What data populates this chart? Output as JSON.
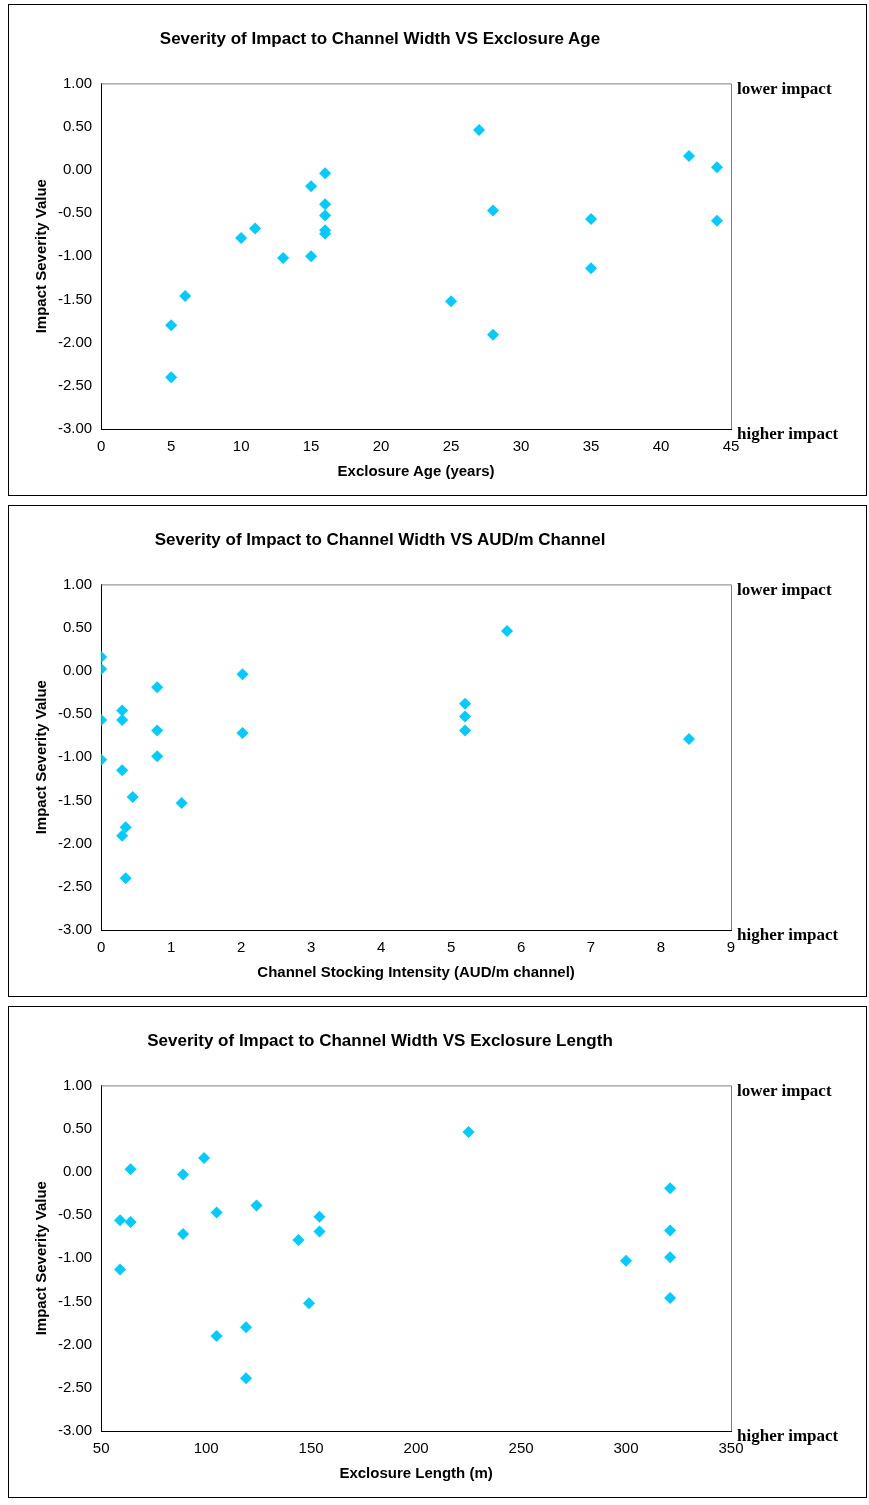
{
  "chart_data": [
    {
      "type": "scatter",
      "title": "Severity of Impact to Channel Width VS Exclosure Age",
      "xlabel": "Exclosure Age (years)",
      "ylabel": "Impact Severity Value",
      "marker": "diamond",
      "grid": false,
      "legend": false,
      "series": [
        {
          "color": "#00ccff",
          "x": [
            5,
            5,
            6,
            10,
            11,
            13,
            15,
            15,
            16,
            16,
            16,
            16,
            16,
            25,
            27,
            28,
            28,
            35,
            35,
            42,
            44,
            44
          ],
          "values": [
            -1.8,
            -2.4,
            -1.46,
            -0.79,
            -0.68,
            -1.02,
            -0.19,
            -1.0,
            -0.04,
            -0.4,
            -0.53,
            -0.7,
            -0.74,
            -1.52,
            0.46,
            -0.47,
            -1.91,
            -0.57,
            -1.14,
            0.16,
            0.03,
            -0.59
          ]
        }
      ],
      "xlim": [
        0,
        45
      ],
      "xticks": [
        0,
        5,
        10,
        15,
        20,
        25,
        30,
        35,
        40,
        45
      ],
      "ylim": [
        -3,
        1
      ],
      "yticks": [
        {
          "value": 1,
          "label": "1.00"
        },
        {
          "value": 0.5,
          "label": "0.50"
        },
        {
          "value": 0,
          "label": "0.00"
        },
        {
          "value": -0.5,
          "label": "-0.50"
        },
        {
          "value": -1,
          "label": "-1.00"
        },
        {
          "value": -1.5,
          "label": "-1.50"
        },
        {
          "value": -2,
          "label": "-2.00"
        },
        {
          "value": -2.5,
          "label": "-2.50"
        },
        {
          "value": -3,
          "label": "-3.00"
        }
      ],
      "annotations": [
        "lower impact",
        "higher impact"
      ]
    },
    {
      "type": "scatter",
      "title": "Severity of Impact to Channel Width VS AUD/m Channel",
      "xlabel": "Channel Stocking Intensity (AUD/m channel)",
      "ylabel": "Impact Severity Value",
      "marker": "diamond",
      "grid": false,
      "legend": false,
      "series": [
        {
          "color": "#00ccff",
          "x": [
            0,
            0,
            0,
            0,
            0.3,
            0.3,
            0.3,
            0.3,
            0.35,
            0.35,
            0.45,
            0.8,
            0.8,
            0.8,
            1.15,
            2.02,
            2.02,
            5.2,
            5.2,
            5.2,
            5.8,
            8.4
          ],
          "values": [
            0.16,
            0.02,
            -0.57,
            -1.03,
            -0.46,
            -0.57,
            -1.15,
            -1.91,
            -1.81,
            -2.4,
            -1.46,
            -0.19,
            -0.69,
            -0.99,
            -1.53,
            -0.04,
            -0.72,
            -0.38,
            -0.53,
            -0.69,
            0.46,
            -0.79
          ]
        }
      ],
      "xlim": [
        0,
        9
      ],
      "xticks": [
        0,
        1,
        2,
        3,
        4,
        5,
        6,
        7,
        8,
        9
      ],
      "ylim": [
        -3,
        1
      ],
      "yticks": [
        {
          "value": 1,
          "label": "1.00"
        },
        {
          "value": 0.5,
          "label": "0.50"
        },
        {
          "value": 0,
          "label": "0.00"
        },
        {
          "value": -0.5,
          "label": "-0.50"
        },
        {
          "value": -1,
          "label": "-1.00"
        },
        {
          "value": -1.5,
          "label": "-1.50"
        },
        {
          "value": -2,
          "label": "-2.00"
        },
        {
          "value": -2.5,
          "label": "-2.50"
        },
        {
          "value": -3,
          "label": "-3.00"
        }
      ],
      "annotations": [
        "lower impact",
        "higher impact"
      ]
    },
    {
      "type": "scatter",
      "title": "Severity of Impact to Channel Width VS Exclosure Length",
      "xlabel": "Exclosure Length (m)",
      "ylabel": "Impact Severity Value",
      "marker": "diamond",
      "grid": false,
      "legend": false,
      "series": [
        {
          "color": "#00ccff",
          "x": [
            59,
            59,
            64,
            64,
            89,
            89,
            99,
            105,
            105,
            119,
            119,
            124,
            144,
            149,
            154,
            154,
            225,
            300,
            321,
            321,
            321,
            321
          ],
          "values": [
            -0.56,
            -1.13,
            0.03,
            -0.58,
            -0.03,
            -0.72,
            0.16,
            -0.47,
            -1.9,
            -1.8,
            -2.39,
            -0.39,
            -0.79,
            -1.52,
            -0.52,
            -0.69,
            0.46,
            -1.03,
            -0.19,
            -0.68,
            -0.99,
            -1.46
          ]
        }
      ],
      "xlim": [
        50,
        350
      ],
      "xticks": [
        50,
        100,
        150,
        200,
        250,
        300,
        350
      ],
      "ylim": [
        -3,
        1
      ],
      "yticks": [
        {
          "value": 1,
          "label": "1.00"
        },
        {
          "value": 0.5,
          "label": "0.50"
        },
        {
          "value": 0,
          "label": "0.00"
        },
        {
          "value": -0.5,
          "label": "-0.50"
        },
        {
          "value": -1,
          "label": "-1.00"
        },
        {
          "value": -1.5,
          "label": "-1.50"
        },
        {
          "value": -2,
          "label": "-2.00"
        },
        {
          "value": -2.5,
          "label": "-2.50"
        },
        {
          "value": -3,
          "label": "-3.00"
        }
      ],
      "annotations": [
        "lower impact",
        "higher impact"
      ]
    }
  ]
}
